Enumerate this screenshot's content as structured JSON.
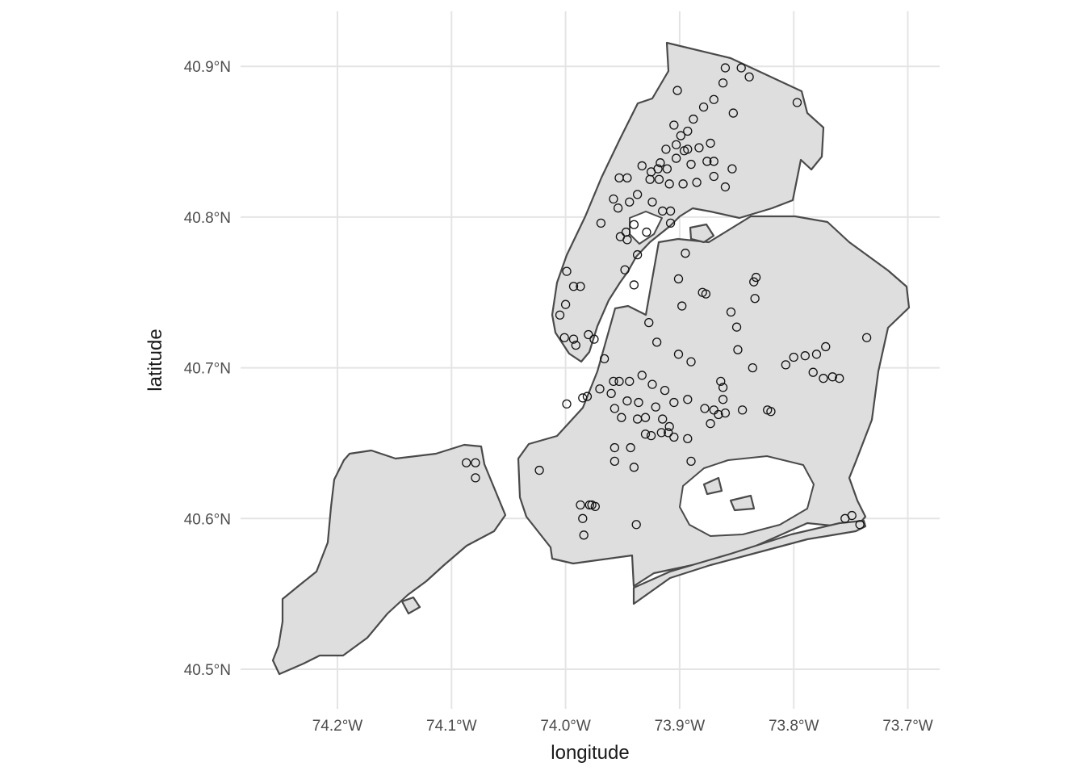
{
  "chart_data": {
    "type": "scatter",
    "xlabel": "longitude",
    "ylabel": "latitude",
    "xlim": [
      -74.27,
      -73.67
    ],
    "ylim": [
      40.475,
      40.93
    ],
    "x_ticks": [
      {
        "value": -74.2,
        "label": "74.2°W"
      },
      {
        "value": -74.1,
        "label": "74.1°W"
      },
      {
        "value": -74.0,
        "label": "74.0°W"
      },
      {
        "value": -73.9,
        "label": "73.9°W"
      },
      {
        "value": -73.8,
        "label": "73.8°W"
      },
      {
        "value": -73.7,
        "label": "73.7°W"
      }
    ],
    "y_ticks": [
      {
        "value": 40.5,
        "label": "40.5°N"
      },
      {
        "value": 40.6,
        "label": "40.6°N"
      },
      {
        "value": 40.7,
        "label": "40.7°N"
      },
      {
        "value": 40.8,
        "label": "40.8°N"
      },
      {
        "value": 40.9,
        "label": "40.9°N"
      }
    ],
    "grid": true,
    "basemap": "New York City borough boundaries",
    "colors": {
      "land": "#dedede",
      "border": "#4a4a4a",
      "point_stroke": "#111111",
      "grid": "#e4e4e4"
    },
    "points": [
      [
        -73.846,
        40.899
      ],
      [
        -73.86,
        40.899
      ],
      [
        -73.862,
        40.889
      ],
      [
        -73.839,
        40.893
      ],
      [
        -73.797,
        40.876
      ],
      [
        -73.902,
        40.884
      ],
      [
        -73.87,
        40.878
      ],
      [
        -73.879,
        40.873
      ],
      [
        -73.853,
        40.869
      ],
      [
        -73.888,
        40.865
      ],
      [
        -73.893,
        40.857
      ],
      [
        -73.905,
        40.861
      ],
      [
        -73.899,
        40.854
      ],
      [
        -73.903,
        40.848
      ],
      [
        -73.893,
        40.845
      ],
      [
        -73.883,
        40.846
      ],
      [
        -73.873,
        40.849
      ],
      [
        -73.896,
        40.844
      ],
      [
        -73.903,
        40.839
      ],
      [
        -73.89,
        40.835
      ],
      [
        -73.876,
        40.837
      ],
      [
        -73.87,
        40.837
      ],
      [
        -73.854,
        40.832
      ],
      [
        -73.912,
        40.845
      ],
      [
        -73.917,
        40.836
      ],
      [
        -73.919,
        40.832
      ],
      [
        -73.925,
        40.83
      ],
      [
        -73.926,
        40.825
      ],
      [
        -73.933,
        40.834
      ],
      [
        -73.918,
        40.825
      ],
      [
        -73.909,
        40.822
      ],
      [
        -73.897,
        40.822
      ],
      [
        -73.885,
        40.823
      ],
      [
        -73.87,
        40.827
      ],
      [
        -73.86,
        40.82
      ],
      [
        -73.937,
        40.815
      ],
      [
        -73.944,
        40.81
      ],
      [
        -73.958,
        40.812
      ],
      [
        -73.946,
        40.826
      ],
      [
        -73.953,
        40.826
      ],
      [
        -73.94,
        40.795
      ],
      [
        -73.947,
        40.79
      ],
      [
        -73.952,
        40.787
      ],
      [
        -73.969,
        40.796
      ],
      [
        -73.924,
        40.81
      ],
      [
        -73.915,
        40.804
      ],
      [
        -73.908,
        40.804
      ],
      [
        -73.948,
        40.765
      ],
      [
        -73.937,
        40.775
      ],
      [
        -73.94,
        40.755
      ],
      [
        -73.999,
        40.764
      ],
      [
        -73.993,
        40.754
      ],
      [
        -73.987,
        40.754
      ],
      [
        -74.0,
        40.742
      ],
      [
        -74.005,
        40.735
      ],
      [
        -74.001,
        40.72
      ],
      [
        -73.993,
        40.719
      ],
      [
        -73.991,
        40.715
      ],
      [
        -73.98,
        40.722
      ],
      [
        -73.975,
        40.719
      ],
      [
        -73.901,
        40.759
      ],
      [
        -73.898,
        40.741
      ],
      [
        -73.88,
        40.75
      ],
      [
        -73.877,
        40.749
      ],
      [
        -73.835,
        40.757
      ],
      [
        -73.833,
        40.76
      ],
      [
        -73.855,
        40.737
      ],
      [
        -73.85,
        40.727
      ],
      [
        -73.849,
        40.712
      ],
      [
        -73.834,
        40.746
      ],
      [
        -73.8,
        40.707
      ],
      [
        -73.79,
        40.708
      ],
      [
        -73.78,
        40.709
      ],
      [
        -73.772,
        40.714
      ],
      [
        -73.736,
        40.72
      ],
      [
        -73.807,
        40.702
      ],
      [
        -73.783,
        40.697
      ],
      [
        -73.774,
        40.693
      ],
      [
        -73.766,
        40.694
      ],
      [
        -73.76,
        40.693
      ],
      [
        -73.836,
        40.7
      ],
      [
        -73.864,
        40.691
      ],
      [
        -73.901,
        40.709
      ],
      [
        -73.933,
        40.695
      ],
      [
        -73.944,
        40.691
      ],
      [
        -73.953,
        40.691
      ],
      [
        -73.958,
        40.691
      ],
      [
        -73.96,
        40.683
      ],
      [
        -73.97,
        40.686
      ],
      [
        -73.999,
        40.676
      ],
      [
        -73.985,
        40.68
      ],
      [
        -73.981,
        40.681
      ],
      [
        -73.957,
        40.673
      ],
      [
        -73.946,
        40.678
      ],
      [
        -73.936,
        40.677
      ],
      [
        -73.924,
        40.689
      ],
      [
        -73.913,
        40.685
      ],
      [
        -73.905,
        40.677
      ],
      [
        -73.893,
        40.679
      ],
      [
        -73.878,
        40.673
      ],
      [
        -73.87,
        40.672
      ],
      [
        -73.86,
        40.67
      ],
      [
        -73.845,
        40.672
      ],
      [
        -73.82,
        40.671
      ],
      [
        -73.921,
        40.674
      ],
      [
        -73.93,
        40.667
      ],
      [
        -73.937,
        40.666
      ],
      [
        -73.951,
        40.667
      ],
      [
        -73.915,
        40.666
      ],
      [
        -73.909,
        40.661
      ],
      [
        -73.905,
        40.654
      ],
      [
        -73.916,
        40.657
      ],
      [
        -73.91,
        40.657
      ],
      [
        -73.925,
        40.655
      ],
      [
        -73.943,
        40.647
      ],
      [
        -73.93,
        40.656
      ],
      [
        -73.957,
        40.647
      ],
      [
        -73.893,
        40.653
      ],
      [
        -73.873,
        40.663
      ],
      [
        -73.866,
        40.669
      ],
      [
        -73.862,
        40.679
      ],
      [
        -73.862,
        40.687
      ],
      [
        -73.89,
        40.638
      ],
      [
        -73.957,
        40.638
      ],
      [
        -73.94,
        40.634
      ],
      [
        -73.985,
        40.6
      ],
      [
        -73.984,
        40.589
      ],
      [
        -73.979,
        40.609
      ],
      [
        -73.977,
        40.609
      ],
      [
        -73.974,
        40.608
      ],
      [
        -73.987,
        40.609
      ],
      [
        -73.938,
        40.596
      ],
      [
        -74.023,
        40.632
      ],
      [
        -74.087,
        40.637
      ],
      [
        -74.079,
        40.637
      ],
      [
        -74.079,
        40.627
      ],
      [
        -73.823,
        40.672
      ],
      [
        -73.755,
        40.6
      ],
      [
        -73.749,
        40.602
      ],
      [
        -73.742,
        40.596
      ],
      [
        -73.927,
        40.73
      ],
      [
        -73.895,
        40.776
      ],
      [
        -73.929,
        40.79
      ],
      [
        -73.911,
        40.832
      ],
      [
        -73.908,
        40.796
      ],
      [
        -73.954,
        40.806
      ],
      [
        -73.946,
        40.785
      ],
      [
        -73.966,
        40.706
      ],
      [
        -73.89,
        40.704
      ],
      [
        -73.92,
        40.717
      ]
    ]
  }
}
